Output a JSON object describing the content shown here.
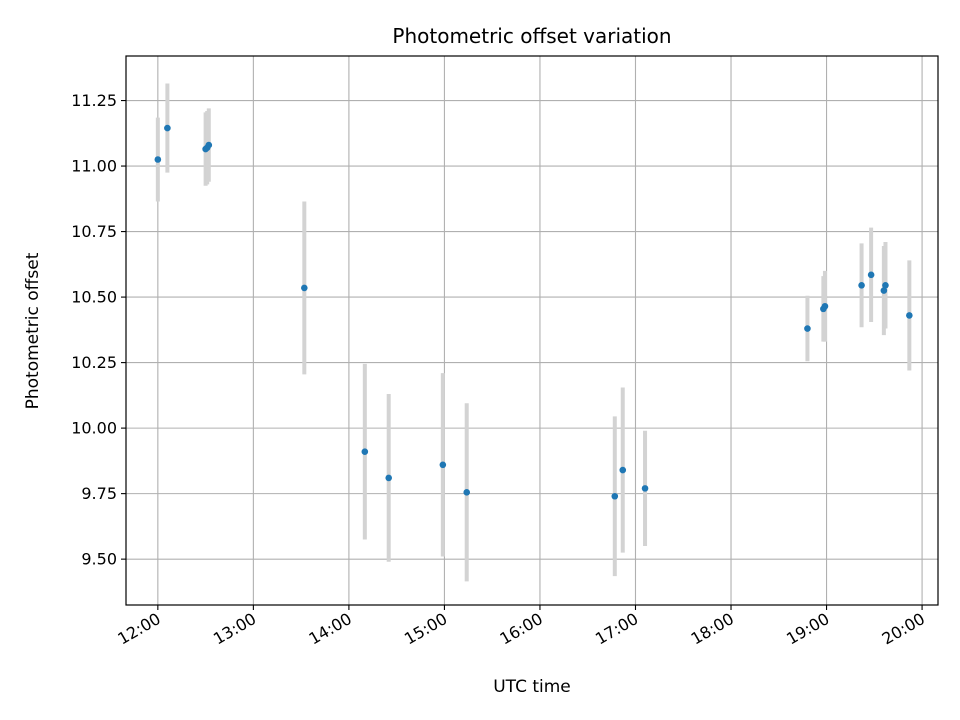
{
  "chart_data": {
    "type": "scatter",
    "title": "Photometric offset variation",
    "xlabel": "UTC time",
    "ylabel": "Photometric offset",
    "xlim": [
      "11:40",
      "20:10"
    ],
    "ylim": [
      9.325,
      11.42
    ],
    "x_ticks": [
      "12:00",
      "13:00",
      "14:00",
      "15:00",
      "16:00",
      "17:00",
      "18:00",
      "19:00",
      "20:00"
    ],
    "y_ticks": [
      "9.50",
      "9.75",
      "10.00",
      "10.25",
      "10.50",
      "10.75",
      "11.00",
      "11.25"
    ],
    "grid": true,
    "marker_color": "#1f77b4",
    "errorbar_color": "#d3d3d3",
    "points": [
      {
        "x": "12:00",
        "y": 11.025,
        "err": 0.16
      },
      {
        "x": "12:06",
        "y": 11.145,
        "err": 0.17
      },
      {
        "x": "12:30",
        "y": 11.065,
        "err": 0.14
      },
      {
        "x": "12:31",
        "y": 11.07,
        "err": 0.14
      },
      {
        "x": "12:32",
        "y": 11.08,
        "err": 0.14
      },
      {
        "x": "13:32",
        "y": 10.535,
        "err": 0.33
      },
      {
        "x": "14:10",
        "y": 9.91,
        "err": 0.335
      },
      {
        "x": "14:25",
        "y": 9.81,
        "err": 0.32
      },
      {
        "x": "14:59",
        "y": 9.86,
        "err": 0.35
      },
      {
        "x": "15:14",
        "y": 9.755,
        "err": 0.34
      },
      {
        "x": "16:47",
        "y": 9.74,
        "err": 0.305
      },
      {
        "x": "16:52",
        "y": 9.84,
        "err": 0.315
      },
      {
        "x": "17:06",
        "y": 9.77,
        "err": 0.22
      },
      {
        "x": "18:48",
        "y": 10.38,
        "err": 0.125
      },
      {
        "x": "18:58",
        "y": 10.455,
        "err": 0.125
      },
      {
        "x": "18:59",
        "y": 10.465,
        "err": 0.135
      },
      {
        "x": "19:22",
        "y": 10.545,
        "err": 0.16
      },
      {
        "x": "19:28",
        "y": 10.585,
        "err": 0.18
      },
      {
        "x": "19:36",
        "y": 10.525,
        "err": 0.17
      },
      {
        "x": "19:37",
        "y": 10.545,
        "err": 0.165
      },
      {
        "x": "19:52",
        "y": 10.43,
        "err": 0.21
      }
    ]
  }
}
